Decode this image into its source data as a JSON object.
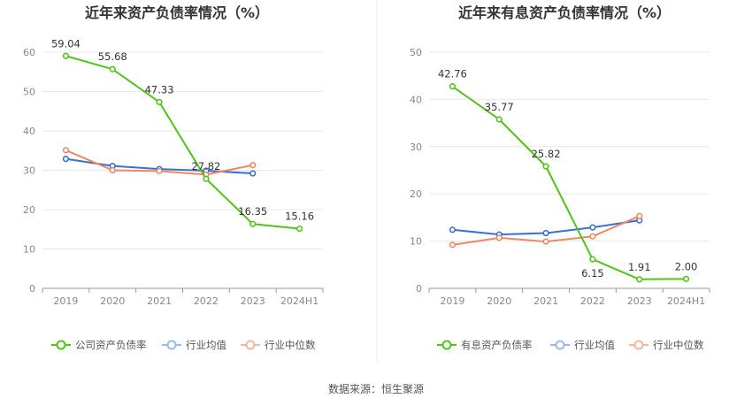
{
  "chart_data": [
    {
      "type": "line",
      "title": "近年来资产负债率情况（%）",
      "categories": [
        "2019",
        "2020",
        "2021",
        "2022",
        "2023",
        "2024H1"
      ],
      "ylim": [
        0,
        60
      ],
      "yticks": [
        0,
        10,
        20,
        30,
        40,
        50,
        60
      ],
      "grid": true,
      "legend_position": "bottom",
      "series": [
        {
          "name": "公司资产负债率",
          "color": "#52c41a",
          "labeled": true,
          "values": [
            59.04,
            55.68,
            47.33,
            27.82,
            16.35,
            15.16
          ]
        },
        {
          "name": "行业均值",
          "color": "#3a6fd1",
          "labeled": false,
          "values": [
            32.9,
            31.1,
            30.3,
            29.9,
            29.2,
            null
          ]
        },
        {
          "name": "行业中位数",
          "color": "#ef8862",
          "labeled": false,
          "values": [
            35.1,
            30.0,
            29.8,
            28.9,
            31.3,
            null
          ]
        }
      ]
    },
    {
      "type": "line",
      "title": "近年来有息资产负债率情况（%）",
      "categories": [
        "2019",
        "2020",
        "2021",
        "2022",
        "2023",
        "2024H1"
      ],
      "ylim": [
        0,
        50
      ],
      "yticks": [
        0,
        10,
        20,
        30,
        40,
        50
      ],
      "grid": true,
      "legend_position": "bottom",
      "series": [
        {
          "name": "有息资产负债率",
          "color": "#52c41a",
          "labeled": true,
          "values": [
            42.76,
            35.77,
            25.82,
            6.15,
            1.91,
            2.0
          ]
        },
        {
          "name": "行业均值",
          "color": "#3a6fd1",
          "labeled": false,
          "values": [
            12.4,
            11.4,
            11.7,
            12.9,
            14.4,
            null
          ]
        },
        {
          "name": "行业中位数",
          "color": "#ef8862",
          "labeled": false,
          "values": [
            9.2,
            10.7,
            9.9,
            11.0,
            15.3,
            null
          ]
        }
      ]
    }
  ],
  "legend_colors": {
    "company": "#52c41a",
    "mean": "#9db8ec",
    "median": "#f5b7a0"
  },
  "source": "数据来源：恒生聚源"
}
